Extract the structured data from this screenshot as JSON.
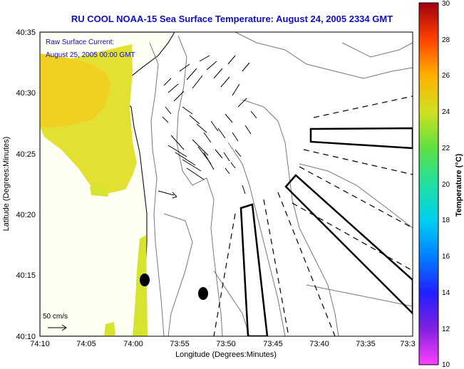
{
  "title": "RU COOL  NOAA-15  Sea Surface Temperature:  August 24, 2005 2334 GMT",
  "annotation": {
    "line1": "Raw Surface Current:",
    "line2": "August 25, 2005 00:00 GMT"
  },
  "scale_label": "50 cm/s",
  "x_axis": {
    "label": "Longitude (Degrees:Minutes)",
    "ticks": [
      "74:10",
      "74:05",
      "74:00",
      "73:55",
      "73:50",
      "73:45",
      "73:40",
      "73:35",
      "73:3"
    ]
  },
  "y_axis": {
    "label": "Latitude (Degrees:Minutes)",
    "ticks": [
      "40:35",
      "40:30",
      "40:25",
      "40:20",
      "40:15",
      "40:10"
    ]
  },
  "colorbar": {
    "label": "Temperature (°C)",
    "ticks": [
      "30",
      "28",
      "26",
      "24",
      "22",
      "20",
      "18",
      "16",
      "14",
      "12",
      "10"
    ],
    "min": 10,
    "max": 30
  },
  "colors": {
    "title": "#1010c0",
    "land": "#fefef2",
    "sst_warm": "#f2d21c",
    "sst_mid": "#dae632"
  }
}
